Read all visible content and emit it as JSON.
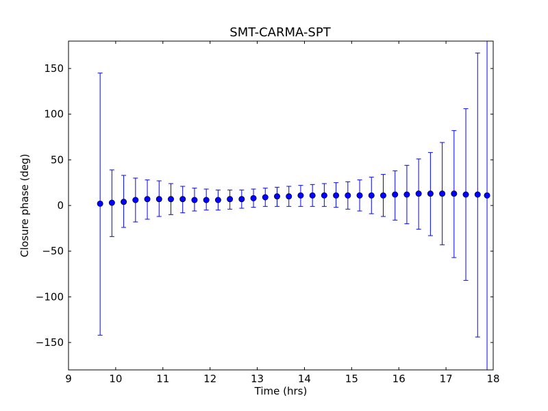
{
  "chart_data": {
    "type": "scatter",
    "title": "SMT-CARMA-SPT",
    "xlabel": "Time (hrs)",
    "ylabel": "Closure phase (deg)",
    "xlim": [
      9,
      18
    ],
    "ylim": [
      -180,
      180
    ],
    "xticks": [
      9,
      10,
      11,
      12,
      13,
      14,
      15,
      16,
      17,
      18
    ],
    "yticks": [
      -150,
      -100,
      -50,
      0,
      50,
      100,
      150
    ],
    "ytick_labels": [
      "−150",
      "−100",
      "−50",
      "0",
      "50",
      "100",
      "150"
    ],
    "grid": false,
    "color": "#0000ff",
    "series": [
      {
        "x": [
          9.67,
          9.92,
          10.17,
          10.42,
          10.67,
          10.92,
          11.17,
          11.42,
          11.67,
          11.92,
          12.17,
          12.42,
          12.67,
          12.92,
          13.17,
          13.42,
          13.67,
          13.92,
          14.17,
          14.42,
          14.67,
          14.92,
          15.17,
          15.42,
          15.67,
          15.92,
          16.17,
          16.42,
          16.67,
          16.92,
          17.17,
          17.42,
          17.67,
          17.87
        ],
        "y": [
          2,
          3,
          4,
          6,
          7,
          7,
          7,
          7,
          6,
          6,
          6,
          7,
          7,
          8,
          9,
          10,
          10,
          11,
          11,
          11,
          11,
          11,
          11,
          11,
          11,
          12,
          12,
          13,
          13,
          13,
          13,
          12,
          12,
          11
        ],
        "err_low": [
          -142,
          -34,
          -24,
          -18,
          -15,
          -12,
          -10,
          -8,
          -6,
          -5,
          -5,
          -4,
          -3,
          -2,
          -1,
          -1,
          -1,
          -1,
          -1,
          -1,
          -2,
          -4,
          -6,
          -9,
          -12,
          -16,
          -20,
          -26,
          -33,
          -43,
          -57,
          -82,
          -144,
          -180
        ],
        "err_high": [
          145,
          39,
          33,
          30,
          28,
          27,
          24,
          21,
          19,
          18,
          17,
          17,
          17,
          18,
          19,
          20,
          21,
          22,
          23,
          24,
          25,
          26,
          28,
          31,
          34,
          38,
          44,
          51,
          58,
          69,
          82,
          106,
          167,
          180
        ]
      }
    ]
  }
}
